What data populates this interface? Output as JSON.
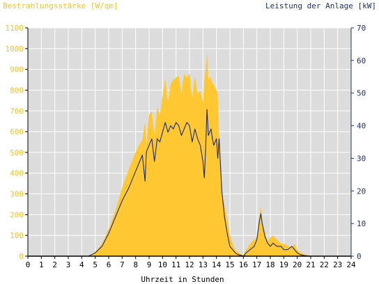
{
  "chart_data": {
    "type": "area",
    "left_axis_title": "Bestrahlungsstärke [W/qm]",
    "right_axis_title": "Leistung der Anlage [kW]",
    "xlabel": "Uhrzeit in Stunden",
    "xlim": [
      0,
      24
    ],
    "ylim_left": [
      0,
      1100
    ],
    "ylim_right": [
      0,
      70
    ],
    "x_ticks": [
      "0",
      "1",
      "2",
      "3",
      "4",
      "5",
      "6",
      "7",
      "8",
      "9",
      "10",
      "11",
      "12",
      "13",
      "14",
      "15",
      "16",
      "17",
      "18",
      "19",
      "20",
      "21",
      "22",
      "23",
      "24"
    ],
    "y_ticks_left": [
      "0",
      "100",
      "200",
      "300",
      "400",
      "500",
      "600",
      "700",
      "800",
      "900",
      "1000",
      "1100"
    ],
    "y_ticks_right": [
      "0",
      "10",
      "20",
      "30",
      "40",
      "50",
      "60",
      "70"
    ],
    "colors": {
      "irradiance": "#ffc832",
      "power": "#1a2b6a",
      "plot_bg": "#dcdcdc",
      "grid": "#ffffff"
    },
    "series": [
      {
        "name": "Bestrahlungsstärke [W/qm]",
        "axis": "left",
        "x": [
          0,
          4.5,
          5.0,
          5.5,
          6.0,
          6.5,
          7.0,
          7.5,
          8.0,
          8.3,
          8.5,
          8.7,
          8.8,
          9.0,
          9.2,
          9.4,
          9.6,
          9.8,
          10.0,
          10.2,
          10.4,
          10.6,
          10.8,
          11.0,
          11.2,
          11.4,
          11.6,
          11.8,
          12.0,
          12.2,
          12.4,
          12.6,
          12.8,
          13.0,
          13.1,
          13.2,
          13.3,
          13.4,
          13.5,
          13.6,
          13.7,
          13.8,
          14.0,
          14.1,
          14.2,
          14.4,
          14.6,
          14.8,
          15.0,
          15.2,
          15.4,
          15.6,
          15.8,
          16.0,
          16.2,
          16.5,
          16.8,
          17.0,
          17.2,
          17.3,
          17.4,
          17.6,
          17.8,
          18.0,
          18.2,
          18.5,
          18.8,
          19.0,
          19.3,
          19.6,
          19.8,
          20.0,
          20.2,
          20.5,
          21.0,
          24
        ],
        "y": [
          0,
          0,
          20,
          60,
          130,
          220,
          330,
          420,
          500,
          540,
          560,
          650,
          540,
          680,
          700,
          580,
          720,
          680,
          770,
          860,
          740,
          830,
          850,
          860,
          870,
          790,
          880,
          860,
          880,
          760,
          870,
          780,
          800,
          740,
          840,
          900,
          980,
          850,
          860,
          860,
          830,
          830,
          800,
          780,
          580,
          300,
          250,
          180,
          100,
          60,
          30,
          20,
          10,
          5,
          30,
          60,
          80,
          90,
          200,
          240,
          160,
          120,
          70,
          90,
          100,
          80,
          60,
          60,
          50,
          40,
          60,
          30,
          20,
          10,
          0,
          0
        ]
      },
      {
        "name": "Leistung der Anlage [kW]",
        "axis": "right",
        "x": [
          0,
          4.5,
          5.0,
          5.5,
          6.0,
          6.5,
          7.0,
          7.5,
          8.0,
          8.3,
          8.5,
          8.7,
          8.8,
          9.0,
          9.2,
          9.4,
          9.6,
          9.8,
          10.0,
          10.2,
          10.4,
          10.6,
          10.8,
          11.0,
          11.2,
          11.4,
          11.6,
          11.8,
          12.0,
          12.2,
          12.4,
          12.6,
          12.8,
          13.0,
          13.1,
          13.2,
          13.3,
          13.4,
          13.5,
          13.6,
          13.7,
          13.8,
          14.0,
          14.1,
          14.2,
          14.4,
          14.6,
          14.8,
          15.0,
          15.2,
          15.4,
          15.6,
          15.8,
          16.0,
          16.2,
          16.5,
          16.8,
          17.0,
          17.2,
          17.3,
          17.4,
          17.6,
          17.8,
          18.0,
          18.2,
          18.5,
          18.8,
          19.0,
          19.3,
          19.6,
          19.8,
          20.0,
          20.2,
          20.5,
          21.0,
          24
        ],
        "y": [
          0,
          0,
          1,
          3,
          7,
          12,
          17,
          21,
          26,
          29,
          31,
          23,
          32,
          34,
          36,
          29,
          36,
          35,
          38,
          41,
          38,
          40,
          39,
          41,
          40,
          37,
          39,
          41,
          40,
          35,
          39,
          36,
          34,
          29,
          24,
          33,
          45,
          37,
          38,
          39,
          36,
          34,
          36,
          30,
          36,
          20,
          12,
          7,
          3,
          2,
          1,
          0.5,
          0.3,
          0,
          1,
          2,
          3,
          5,
          11,
          13,
          10,
          6,
          4,
          3,
          4,
          3,
          3,
          2,
          2,
          3,
          2,
          1,
          0.5,
          0.2,
          0,
          0
        ]
      }
    ]
  }
}
